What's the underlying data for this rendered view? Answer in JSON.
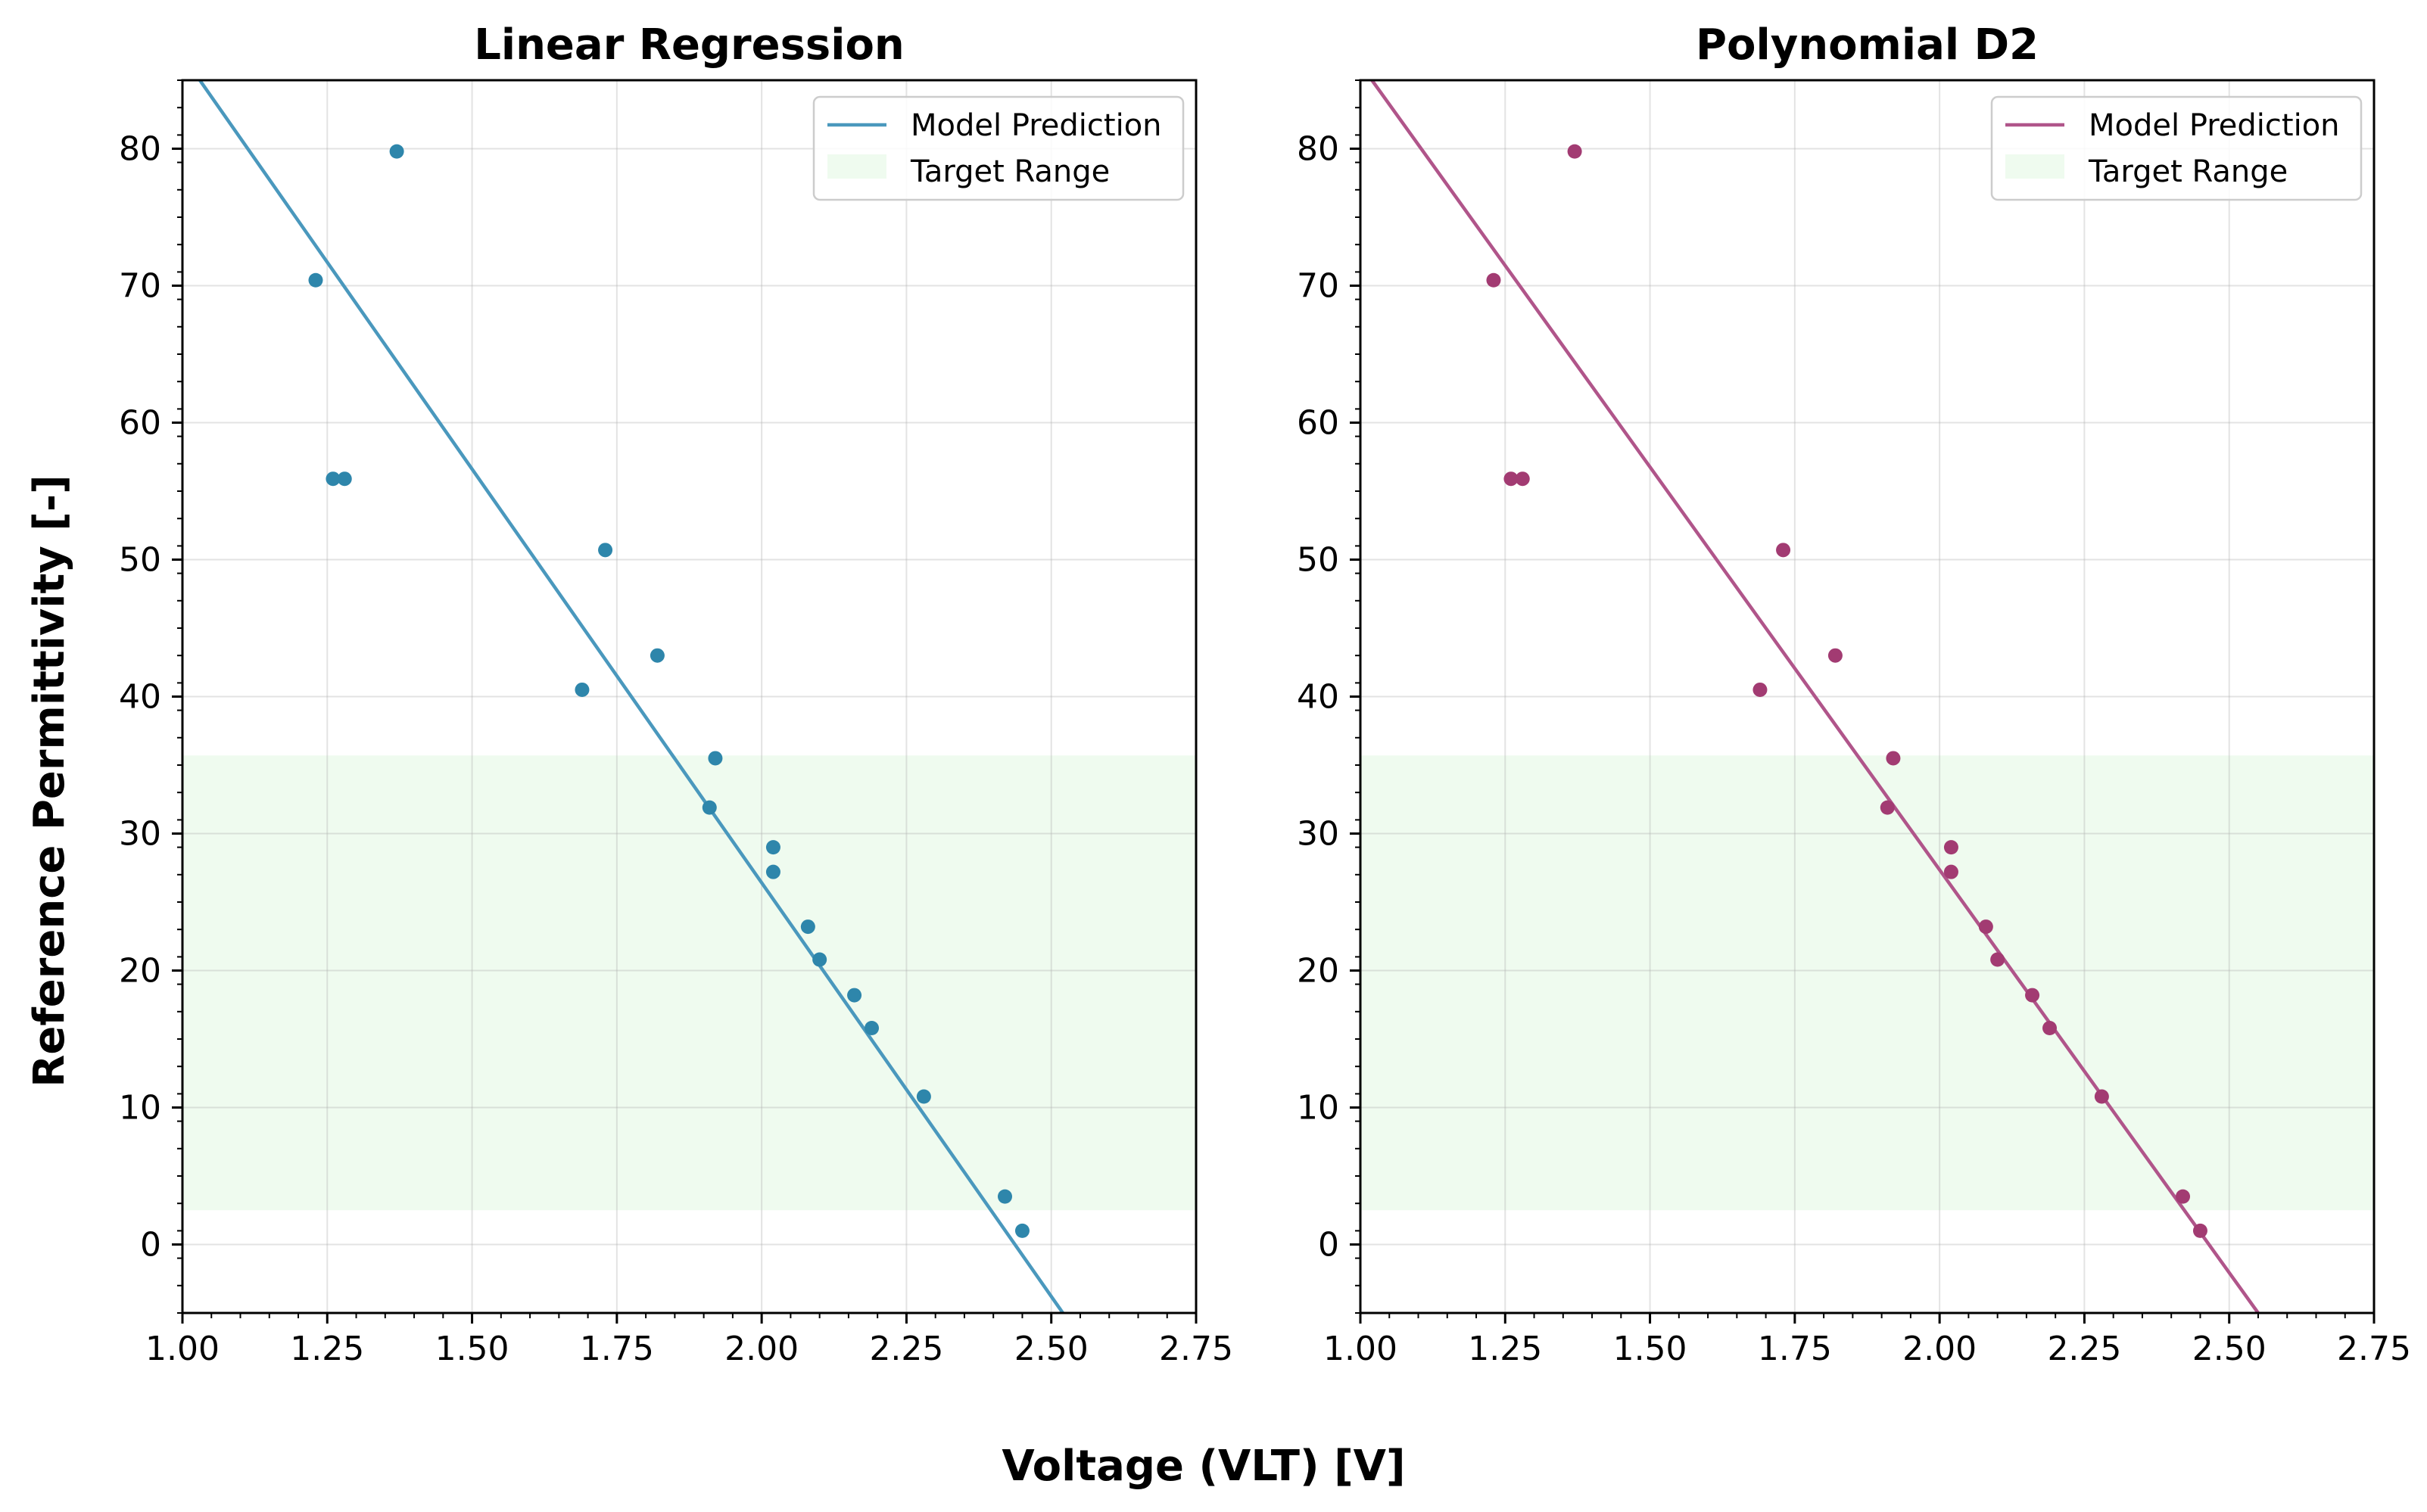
{
  "figure": {
    "xlabel": "Voltage (VLT) [V]",
    "ylabel": "Reference Permittivity [-]"
  },
  "chart_data": [
    {
      "type": "scatter",
      "title": "Linear Regression",
      "xlim": [
        1.0,
        2.75
      ],
      "ylim": [
        -5,
        85
      ],
      "xticks": [
        "1.00",
        "1.25",
        "1.50",
        "1.75",
        "2.00",
        "2.25",
        "2.50",
        "2.75"
      ],
      "yticks": [
        "0",
        "10",
        "20",
        "30",
        "40",
        "50",
        "60",
        "70",
        "80"
      ],
      "grid": true,
      "legend_position": "top-right",
      "color": "#4a98bd",
      "point_color": "#2e86ab",
      "target_range": {
        "name": "Target Range",
        "y": [
          2.5,
          35.7
        ],
        "color": "#eafaea"
      },
      "line": {
        "name": "Model Prediction",
        "x": [
          1.03,
          2.52
        ],
        "y": [
          85,
          -5
        ]
      },
      "points": {
        "x": [
          1.23,
          1.26,
          1.28,
          1.37,
          1.69,
          1.73,
          1.82,
          1.91,
          1.92,
          2.02,
          2.02,
          2.08,
          2.1,
          2.16,
          2.19,
          2.28,
          2.42,
          2.45
        ],
        "y": [
          70.4,
          55.9,
          55.9,
          79.8,
          40.5,
          50.7,
          43.0,
          31.9,
          35.5,
          29.0,
          27.2,
          23.2,
          20.8,
          18.2,
          15.8,
          10.8,
          3.5,
          1.0
        ]
      }
    },
    {
      "type": "scatter",
      "title": "Polynomial D2",
      "xlim": [
        1.0,
        2.75
      ],
      "ylim": [
        -5,
        85
      ],
      "xticks": [
        "1.00",
        "1.25",
        "1.50",
        "1.75",
        "2.00",
        "2.25",
        "2.50",
        "2.75"
      ],
      "yticks": [
        "0",
        "10",
        "20",
        "30",
        "40",
        "50",
        "60",
        "70",
        "80"
      ],
      "grid": true,
      "legend_position": "top-right",
      "color": "#b0558a",
      "point_color": "#a23b72",
      "target_range": {
        "name": "Target Range",
        "y": [
          2.5,
          35.7
        ],
        "color": "#eafaea"
      },
      "line": {
        "name": "Model Prediction",
        "x": [
          1.02,
          2.55
        ],
        "y": [
          85,
          -5
        ]
      },
      "points": {
        "x": [
          1.23,
          1.26,
          1.28,
          1.37,
          1.69,
          1.73,
          1.82,
          1.91,
          1.92,
          2.02,
          2.02,
          2.08,
          2.1,
          2.16,
          2.19,
          2.28,
          2.42,
          2.45
        ],
        "y": [
          70.4,
          55.9,
          55.9,
          79.8,
          40.5,
          50.7,
          43.0,
          31.9,
          35.5,
          29.0,
          27.2,
          23.2,
          20.8,
          18.2,
          15.8,
          10.8,
          3.5,
          1.0
        ]
      }
    }
  ]
}
